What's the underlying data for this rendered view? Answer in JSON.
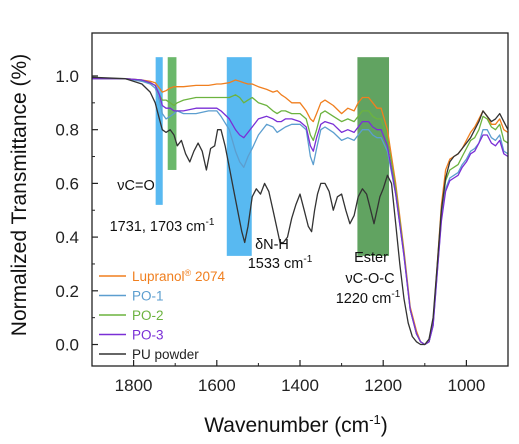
{
  "chart_data": {
    "type": "line",
    "title": "",
    "xlabel": "Wavenumber (cm",
    "xlabel_sup": "-1",
    "xlabel_tail": ")",
    "ylabel": "Normalized Transmittance (%)",
    "xlim": [
      1900,
      900
    ],
    "ylim": [
      -0.08,
      1.16
    ],
    "x_reversed": true,
    "xticks": [
      1800,
      1600,
      1400,
      1200,
      1000
    ],
    "yticks": [
      0.0,
      0.2,
      0.4,
      0.6,
      0.8,
      1.0
    ],
    "xtick_labels": [
      "1800",
      "1600",
      "1400",
      "1200",
      "1000"
    ],
    "ytick_labels": [
      "0.0",
      "0.2",
      "0.4",
      "0.6",
      "0.8",
      "1.0"
    ],
    "grid": false,
    "legend_position": "bottom-left",
    "bands": [
      {
        "x_from": 1747,
        "x_to": 1730,
        "y_from": 0.52,
        "y_to": 1.07,
        "color": "#33aaee"
      },
      {
        "x_from": 1718,
        "x_to": 1697,
        "y_from": 0.65,
        "y_to": 1.07,
        "color": "#4aa84a"
      },
      {
        "x_from": 1576,
        "x_to": 1516,
        "y_from": 0.33,
        "y_to": 1.07,
        "color": "#33aaee"
      },
      {
        "x_from": 1262,
        "x_to": 1186,
        "y_from": 0.33,
        "y_to": 1.07,
        "color": "#3e8f3e"
      }
    ],
    "annotations": [
      {
        "lines": [
          {
            "text": "νC=O"
          },
          {
            "text": "1731, 1703 cm",
            "sup": "-1"
          }
        ]
      },
      {
        "lines": [
          {
            "text": "δN-H"
          },
          {
            "text": "1533 cm",
            "sup": "-1"
          }
        ]
      },
      {
        "lines": [
          {
            "text": "Ester"
          },
          {
            "text": "νC-O-C"
          },
          {
            "text": "1220 cm",
            "sup": "-1"
          }
        ]
      }
    ],
    "series": [
      {
        "name": "Lupranol",
        "name_sup": "®",
        "name_tail": " 2074",
        "color": "#f07f1f",
        "x": [
          1900,
          1820,
          1780,
          1760,
          1748,
          1738,
          1731,
          1722,
          1712,
          1703,
          1695,
          1680,
          1650,
          1620,
          1600,
          1590,
          1570,
          1555,
          1545,
          1535,
          1525,
          1515,
          1500,
          1480,
          1465,
          1455,
          1445,
          1435,
          1420,
          1400,
          1385,
          1375,
          1368,
          1360,
          1350,
          1340,
          1320,
          1300,
          1285,
          1270,
          1260,
          1250,
          1235,
          1225,
          1215,
          1205,
          1190,
          1170,
          1150,
          1135,
          1120,
          1110,
          1100,
          1090,
          1080,
          1070,
          1060,
          1050,
          1040,
          1030,
          1020,
          1010,
          1000,
          990,
          980,
          970,
          960,
          950,
          940,
          930,
          920,
          910,
          900
        ],
        "y": [
          0.99,
          0.99,
          0.985,
          0.98,
          0.975,
          0.955,
          0.94,
          0.945,
          0.955,
          0.96,
          0.96,
          0.96,
          0.965,
          0.965,
          0.97,
          0.97,
          0.975,
          0.985,
          0.98,
          0.975,
          0.97,
          0.97,
          0.96,
          0.95,
          0.94,
          0.945,
          0.93,
          0.92,
          0.9,
          0.9,
          0.87,
          0.84,
          0.83,
          0.86,
          0.9,
          0.91,
          0.89,
          0.86,
          0.88,
          0.87,
          0.9,
          0.92,
          0.92,
          0.9,
          0.88,
          0.88,
          0.8,
          0.6,
          0.35,
          0.14,
          0.05,
          0.01,
          0.0,
          0.01,
          0.08,
          0.3,
          0.52,
          0.65,
          0.69,
          0.7,
          0.71,
          0.73,
          0.76,
          0.79,
          0.81,
          0.84,
          0.87,
          0.85,
          0.82,
          0.82,
          0.84,
          0.8,
          0.79
        ]
      },
      {
        "name": "PO-1",
        "color": "#5c9ecf",
        "x": [
          1900,
          1820,
          1780,
          1760,
          1748,
          1738,
          1731,
          1722,
          1712,
          1703,
          1695,
          1680,
          1650,
          1620,
          1600,
          1590,
          1570,
          1555,
          1545,
          1535,
          1525,
          1515,
          1500,
          1480,
          1465,
          1455,
          1445,
          1435,
          1420,
          1400,
          1385,
          1375,
          1368,
          1360,
          1350,
          1340,
          1320,
          1300,
          1285,
          1270,
          1260,
          1250,
          1235,
          1225,
          1215,
          1205,
          1190,
          1170,
          1150,
          1135,
          1120,
          1110,
          1100,
          1090,
          1080,
          1070,
          1060,
          1050,
          1040,
          1030,
          1020,
          1010,
          1000,
          990,
          980,
          970,
          960,
          950,
          940,
          930,
          920,
          910,
          900
        ],
        "y": [
          0.99,
          0.99,
          0.98,
          0.97,
          0.955,
          0.91,
          0.86,
          0.84,
          0.85,
          0.86,
          0.87,
          0.86,
          0.86,
          0.87,
          0.87,
          0.85,
          0.8,
          0.72,
          0.68,
          0.66,
          0.7,
          0.73,
          0.78,
          0.82,
          0.81,
          0.79,
          0.8,
          0.81,
          0.82,
          0.82,
          0.8,
          0.7,
          0.67,
          0.73,
          0.8,
          0.81,
          0.79,
          0.76,
          0.77,
          0.76,
          0.78,
          0.8,
          0.8,
          0.78,
          0.77,
          0.77,
          0.72,
          0.56,
          0.33,
          0.13,
          0.04,
          0.01,
          0.0,
          0.01,
          0.07,
          0.27,
          0.47,
          0.58,
          0.62,
          0.63,
          0.64,
          0.67,
          0.69,
          0.72,
          0.73,
          0.75,
          0.8,
          0.8,
          0.77,
          0.76,
          0.78,
          0.72,
          0.71
        ]
      },
      {
        "name": "PO-2",
        "color": "#6cb33f",
        "x": [
          1900,
          1820,
          1780,
          1760,
          1748,
          1738,
          1731,
          1722,
          1712,
          1703,
          1695,
          1680,
          1650,
          1620,
          1600,
          1590,
          1570,
          1555,
          1545,
          1535,
          1525,
          1515,
          1500,
          1480,
          1465,
          1455,
          1445,
          1435,
          1420,
          1400,
          1385,
          1375,
          1368,
          1360,
          1350,
          1340,
          1320,
          1300,
          1285,
          1270,
          1260,
          1250,
          1235,
          1225,
          1215,
          1205,
          1190,
          1170,
          1150,
          1135,
          1120,
          1110,
          1100,
          1090,
          1080,
          1070,
          1060,
          1050,
          1040,
          1030,
          1020,
          1010,
          1000,
          990,
          980,
          970,
          960,
          950,
          940,
          930,
          920,
          910,
          900
        ],
        "y": [
          0.99,
          0.99,
          0.985,
          0.975,
          0.965,
          0.93,
          0.91,
          0.91,
          0.9,
          0.89,
          0.9,
          0.91,
          0.92,
          0.92,
          0.92,
          0.92,
          0.92,
          0.93,
          0.92,
          0.9,
          0.91,
          0.92,
          0.9,
          0.89,
          0.87,
          0.86,
          0.87,
          0.87,
          0.86,
          0.86,
          0.84,
          0.78,
          0.76,
          0.8,
          0.86,
          0.87,
          0.85,
          0.83,
          0.84,
          0.83,
          0.85,
          0.87,
          0.87,
          0.85,
          0.84,
          0.84,
          0.77,
          0.58,
          0.34,
          0.13,
          0.04,
          0.01,
          0.0,
          0.01,
          0.08,
          0.29,
          0.5,
          0.61,
          0.65,
          0.66,
          0.67,
          0.7,
          0.73,
          0.76,
          0.77,
          0.8,
          0.85,
          0.84,
          0.81,
          0.8,
          0.82,
          0.76,
          0.75
        ]
      },
      {
        "name": "PO-3",
        "color": "#7a2fd6",
        "x": [
          1900,
          1820,
          1780,
          1760,
          1748,
          1738,
          1731,
          1722,
          1712,
          1703,
          1695,
          1680,
          1650,
          1620,
          1600,
          1590,
          1570,
          1555,
          1545,
          1535,
          1525,
          1515,
          1500,
          1480,
          1465,
          1455,
          1445,
          1435,
          1420,
          1400,
          1385,
          1375,
          1368,
          1360,
          1350,
          1340,
          1320,
          1300,
          1285,
          1270,
          1260,
          1250,
          1235,
          1225,
          1215,
          1205,
          1190,
          1170,
          1150,
          1135,
          1120,
          1110,
          1100,
          1090,
          1080,
          1070,
          1060,
          1050,
          1040,
          1030,
          1020,
          1010,
          1000,
          990,
          980,
          970,
          960,
          950,
          940,
          930,
          920,
          910,
          900
        ],
        "y": [
          0.99,
          0.99,
          0.985,
          0.975,
          0.965,
          0.93,
          0.89,
          0.88,
          0.88,
          0.87,
          0.87,
          0.87,
          0.88,
          0.88,
          0.88,
          0.87,
          0.84,
          0.8,
          0.78,
          0.77,
          0.79,
          0.81,
          0.84,
          0.85,
          0.84,
          0.83,
          0.83,
          0.84,
          0.84,
          0.83,
          0.81,
          0.74,
          0.72,
          0.77,
          0.82,
          0.83,
          0.82,
          0.79,
          0.8,
          0.79,
          0.81,
          0.83,
          0.83,
          0.81,
          0.8,
          0.8,
          0.74,
          0.56,
          0.33,
          0.13,
          0.04,
          0.01,
          0.0,
          0.01,
          0.07,
          0.27,
          0.46,
          0.57,
          0.61,
          0.62,
          0.63,
          0.66,
          0.68,
          0.71,
          0.72,
          0.75,
          0.78,
          0.78,
          0.75,
          0.74,
          0.76,
          0.71,
          0.7
        ]
      },
      {
        "name": "PU powder",
        "color": "#333333",
        "x": [
          1900,
          1820,
          1780,
          1760,
          1748,
          1738,
          1731,
          1722,
          1712,
          1703,
          1695,
          1685,
          1675,
          1665,
          1655,
          1645,
          1635,
          1625,
          1615,
          1605,
          1598,
          1590,
          1580,
          1570,
          1560,
          1550,
          1540,
          1533,
          1525,
          1515,
          1505,
          1495,
          1485,
          1475,
          1465,
          1455,
          1448,
          1440,
          1430,
          1420,
          1410,
          1400,
          1390,
          1380,
          1372,
          1365,
          1358,
          1350,
          1340,
          1330,
          1320,
          1310,
          1300,
          1290,
          1280,
          1270,
          1260,
          1250,
          1240,
          1230,
          1222,
          1215,
          1208,
          1200,
          1190,
          1180,
          1170,
          1160,
          1150,
          1140,
          1130,
          1120,
          1110,
          1100,
          1090,
          1080,
          1070,
          1060,
          1050,
          1040,
          1030,
          1020,
          1010,
          1000,
          990,
          980,
          970,
          960,
          950,
          940,
          930,
          920,
          910,
          900
        ],
        "y": [
          0.995,
          0.99,
          0.97,
          0.94,
          0.9,
          0.84,
          0.8,
          0.79,
          0.8,
          0.78,
          0.74,
          0.76,
          0.71,
          0.68,
          0.72,
          0.75,
          0.72,
          0.65,
          0.73,
          0.74,
          0.8,
          0.8,
          0.74,
          0.66,
          0.58,
          0.5,
          0.42,
          0.38,
          0.44,
          0.55,
          0.58,
          0.56,
          0.6,
          0.57,
          0.5,
          0.43,
          0.38,
          0.38,
          0.4,
          0.47,
          0.52,
          0.56,
          0.5,
          0.44,
          0.42,
          0.5,
          0.56,
          0.6,
          0.6,
          0.57,
          0.5,
          0.55,
          0.56,
          0.5,
          0.45,
          0.48,
          0.55,
          0.58,
          0.56,
          0.5,
          0.45,
          0.5,
          0.55,
          0.58,
          0.63,
          0.6,
          0.45,
          0.3,
          0.17,
          0.08,
          0.03,
          0.01,
          0.0,
          0.0,
          0.02,
          0.1,
          0.3,
          0.5,
          0.62,
          0.68,
          0.7,
          0.71,
          0.73,
          0.75,
          0.77,
          0.8,
          0.83,
          0.87,
          0.85,
          0.83,
          0.84,
          0.86,
          0.83,
          0.8
        ]
      }
    ]
  }
}
